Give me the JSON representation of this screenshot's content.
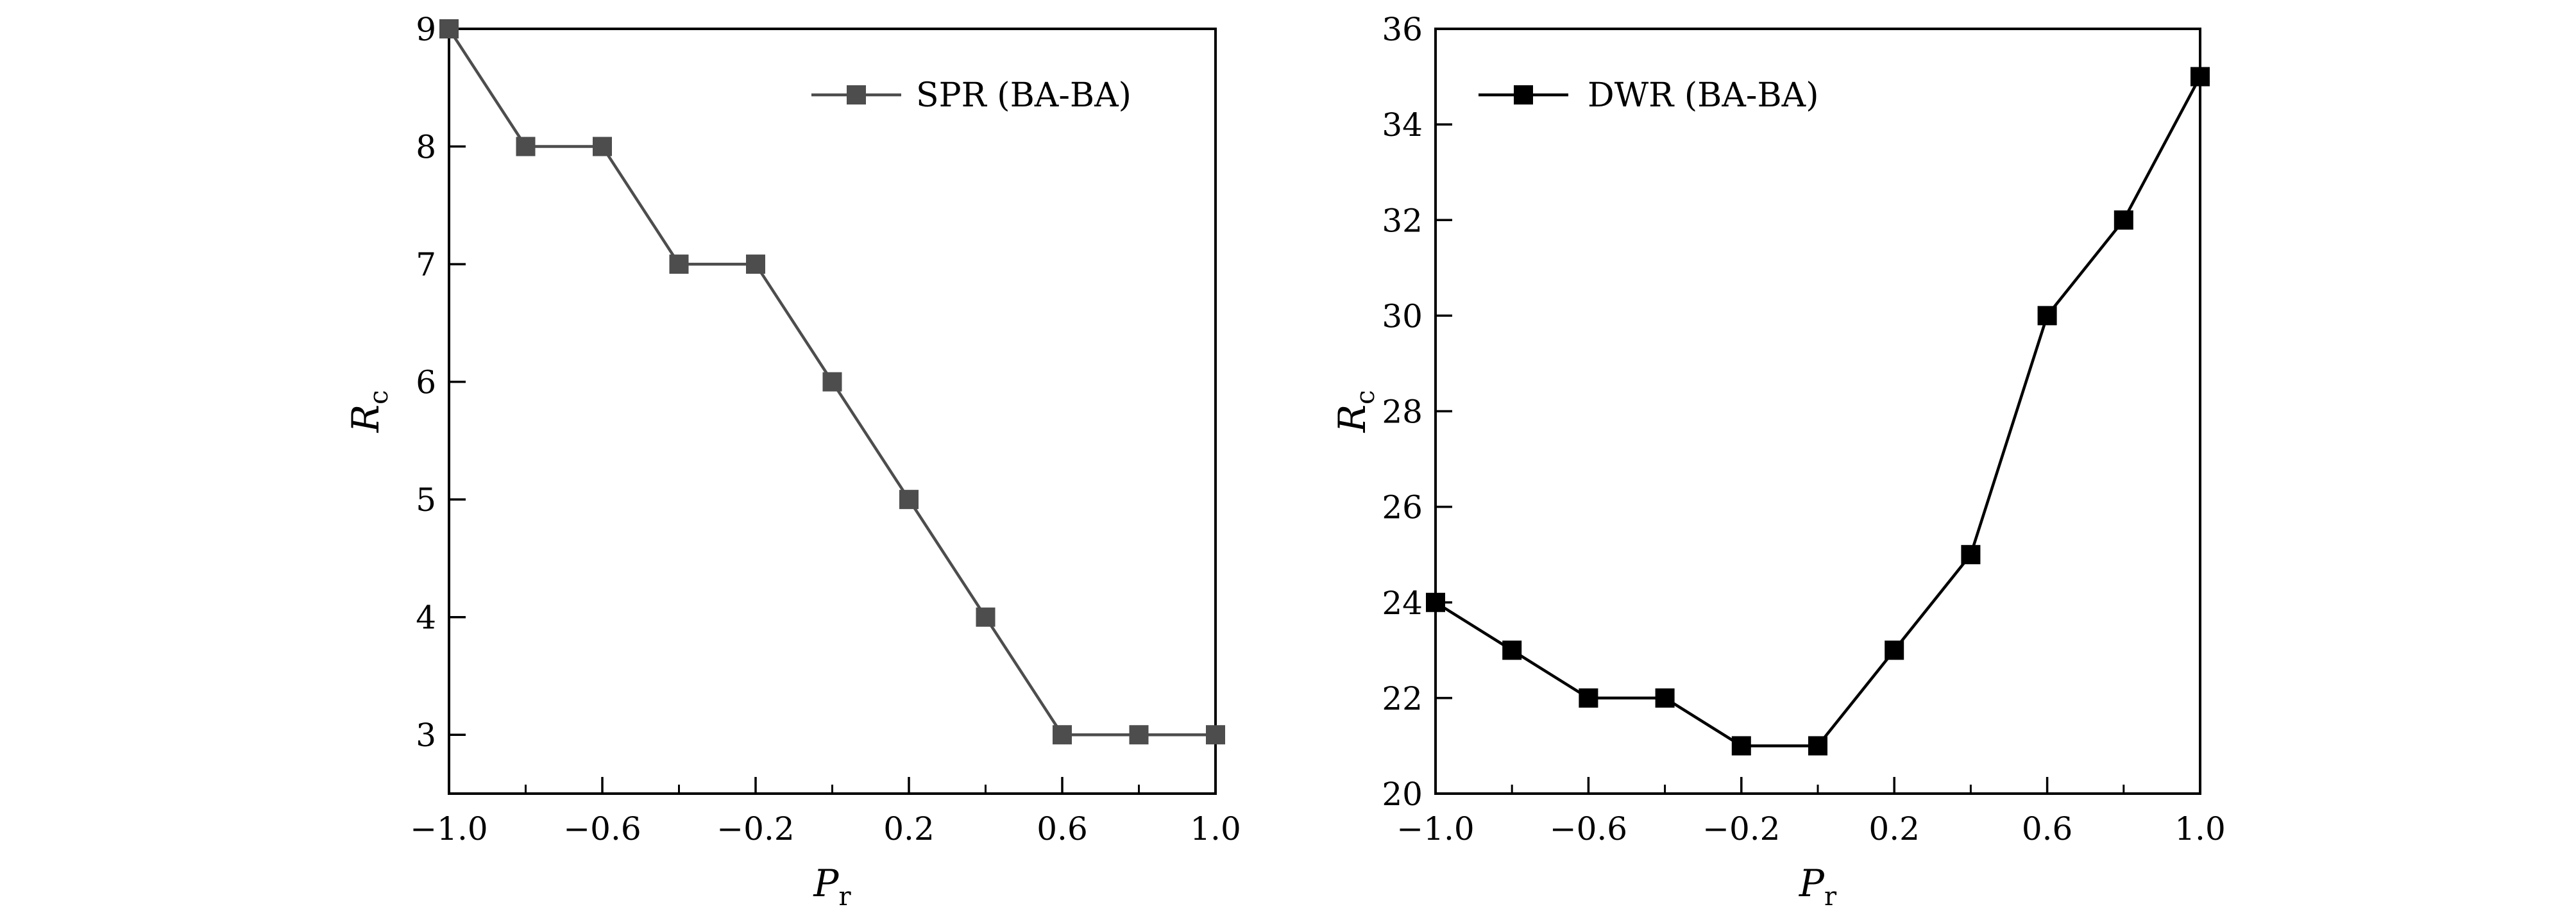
{
  "chart_data": [
    {
      "type": "line",
      "xlabel": "P",
      "xlabel_sub": "r",
      "ylabel": "R",
      "ylabel_sub": "c",
      "xlim": [
        -1.0,
        1.0
      ],
      "ylim": [
        2.5,
        9
      ],
      "x_ticks": [
        -1.0,
        -0.6,
        -0.2,
        0.2,
        0.6,
        1.0
      ],
      "x_tick_labels": [
        "−1.0",
        "−0.6",
        "−0.2",
        "0.2",
        "0.6",
        "1.0"
      ],
      "y_ticks": [
        3,
        4,
        5,
        6,
        7,
        8,
        9
      ],
      "y_tick_labels": [
        "3",
        "4",
        "5",
        "6",
        "7",
        "8",
        "9"
      ],
      "legend_position": "top-right",
      "grid": false,
      "series": [
        {
          "name": "SPR (BA-BA)",
          "color": "#4d4d4d",
          "marker": "square",
          "x": [
            -1.0,
            -0.8,
            -0.6,
            -0.4,
            -0.2,
            0.0,
            0.2,
            0.4,
            0.6,
            0.8,
            1.0
          ],
          "values": [
            9,
            8,
            8,
            7,
            7,
            6,
            5,
            4,
            3,
            3,
            3
          ]
        }
      ]
    },
    {
      "type": "line",
      "xlabel": "P",
      "xlabel_sub": "r",
      "ylabel": "R",
      "ylabel_sub": "c",
      "xlim": [
        -1.0,
        1.0
      ],
      "ylim": [
        20,
        36
      ],
      "x_ticks": [
        -1.0,
        -0.6,
        -0.2,
        0.2,
        0.6,
        1.0
      ],
      "x_tick_labels": [
        "−1.0",
        "−0.6",
        "−0.2",
        "0.2",
        "0.6",
        "1.0"
      ],
      "y_ticks": [
        20,
        22,
        24,
        26,
        28,
        30,
        32,
        34,
        36
      ],
      "y_tick_labels": [
        "20",
        "22",
        "24",
        "26",
        "28",
        "30",
        "32",
        "34",
        "36"
      ],
      "legend_position": "top-left",
      "grid": false,
      "series": [
        {
          "name": "DWR (BA-BA)",
          "color": "#000000",
          "marker": "square",
          "x": [
            -1.0,
            -0.8,
            -0.6,
            -0.4,
            -0.2,
            0.0,
            0.2,
            0.4,
            0.6,
            0.8,
            1.0
          ],
          "values": [
            24,
            23,
            22,
            22,
            21,
            21,
            23,
            25,
            30,
            32,
            35
          ]
        }
      ]
    }
  ]
}
